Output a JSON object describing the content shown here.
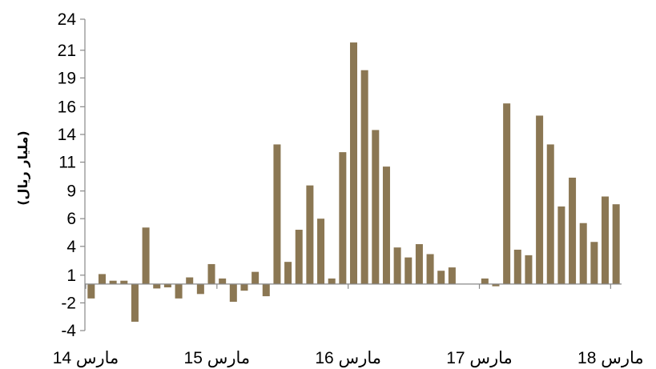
{
  "chart_data": {
    "type": "bar",
    "title": "",
    "xlabel": "",
    "ylabel": "(مليار ريال)",
    "ylim": [
      -4.4,
      24
    ],
    "y_ticks": [
      "24",
      "21",
      "19",
      "16",
      "14",
      "11",
      "9",
      "6",
      "4",
      "1",
      "-2",
      "-4"
    ],
    "y_tick_values": [
      23.9,
      21.1,
      18.6,
      16.0,
      13.5,
      11.0,
      8.4,
      5.9,
      3.4,
      0.8,
      -1.7,
      -4.2
    ],
    "x_tick_labels": [
      "مارس 14",
      "مارس 15",
      "مارس 16",
      "مارس 17",
      "مارس 18"
    ],
    "x_tick_month_index": [
      0,
      12,
      24,
      36,
      48
    ],
    "months_total": 49,
    "bar_color": "#8b7753",
    "gridlines": false,
    "legend": "none",
    "values": [
      -1.3,
      0.9,
      0.3,
      0.3,
      -3.4,
      5.1,
      -0.4,
      -0.3,
      -1.3,
      0.6,
      -0.9,
      1.8,
      0.5,
      -1.6,
      -0.6,
      1.1,
      -1.1,
      12.6,
      2.0,
      4.9,
      8.9,
      5.9,
      0.5,
      11.9,
      21.8,
      19.3,
      13.9,
      10.6,
      3.3,
      2.4,
      3.6,
      2.7,
      1.2,
      1.5,
      0.0,
      0.0,
      0.5,
      -0.2,
      16.3,
      3.1,
      2.6,
      15.2,
      12.6,
      7.0,
      9.6,
      5.5,
      3.8,
      7.9,
      7.2
    ]
  }
}
